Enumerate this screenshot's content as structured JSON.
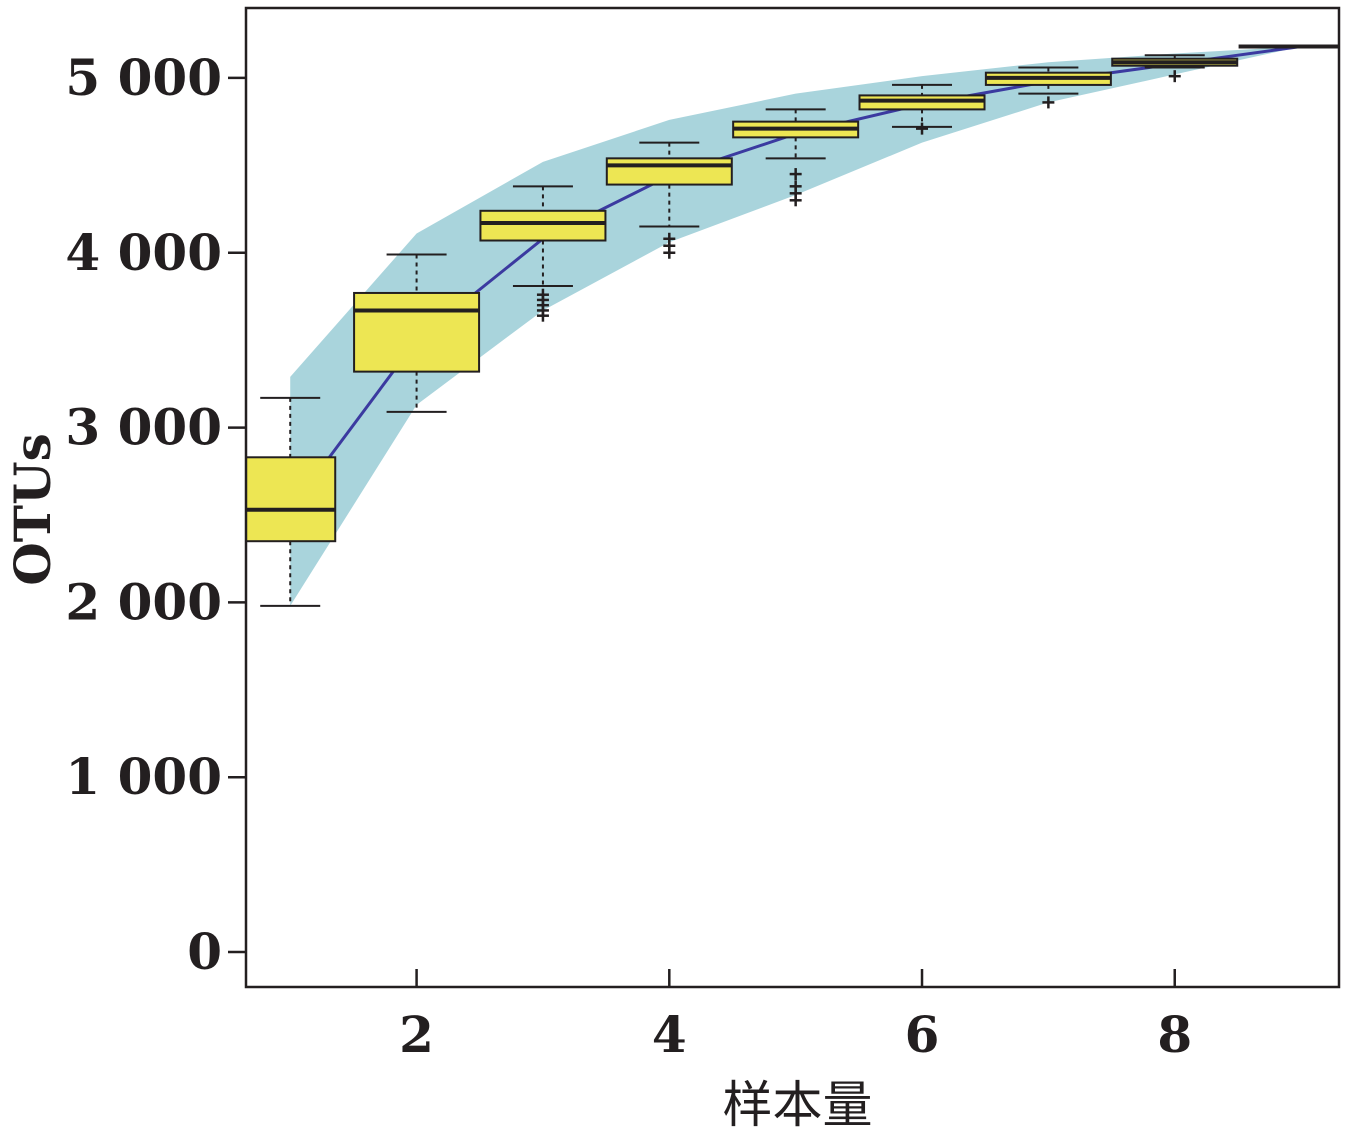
{
  "chart_data": {
    "type": "boxplot",
    "title": "",
    "xlabel": "样本量",
    "ylabel": "OTUs",
    "xlim": [
      0.65,
      9.3
    ],
    "ylim": [
      -200,
      5400
    ],
    "x_ticks": [
      2,
      4,
      6,
      8
    ],
    "x_tick_labels": [
      "2",
      "4",
      "6",
      "8"
    ],
    "y_ticks": [
      0,
      1000,
      2000,
      3000,
      4000,
      5000
    ],
    "y_tick_labels": [
      "0",
      "1 000",
      "2 000",
      "3 000",
      "4 000",
      "5 000"
    ],
    "grid": false,
    "colors": {
      "box_fill": "#ede653",
      "band_fill": "#a9d4dc",
      "line": "#3b3aa0",
      "ink": "#231f20"
    },
    "boxes": [
      {
        "x": 1,
        "whisker_low": 1980,
        "q1": 2350,
        "median": 2530,
        "q3": 2830,
        "whisker_high": 3170,
        "outliers": []
      },
      {
        "x": 2,
        "whisker_low": 3090,
        "q1": 3320,
        "median": 3670,
        "q3": 3770,
        "whisker_high": 3990,
        "outliers": []
      },
      {
        "x": 3,
        "whisker_low": 3810,
        "q1": 4070,
        "median": 4170,
        "q3": 4240,
        "whisker_high": 4380,
        "outliers": [
          3760,
          3730,
          3700,
          3670,
          3640
        ]
      },
      {
        "x": 4,
        "whisker_low": 4150,
        "q1": 4390,
        "median": 4500,
        "q3": 4540,
        "whisker_high": 4630,
        "outliers": [
          4080,
          4040,
          4000
        ]
      },
      {
        "x": 5,
        "whisker_low": 4540,
        "q1": 4660,
        "median": 4710,
        "q3": 4750,
        "whisker_high": 4820,
        "outliers": [
          4450,
          4380,
          4340,
          4300
        ]
      },
      {
        "x": 6,
        "whisker_low": 4720,
        "q1": 4820,
        "median": 4870,
        "q3": 4900,
        "whisker_high": 4960,
        "outliers": [
          4710
        ]
      },
      {
        "x": 7,
        "whisker_low": 4910,
        "q1": 4960,
        "median": 5000,
        "q3": 5030,
        "whisker_high": 5060,
        "outliers": [
          4860
        ]
      },
      {
        "x": 8,
        "whisker_low": 5060,
        "q1": 5070,
        "median": 5090,
        "q3": 5110,
        "whisker_high": 5130,
        "outliers": [
          5010
        ]
      },
      {
        "x": 9,
        "whisker_low": 5180,
        "q1": 5180,
        "median": 5180,
        "q3": 5180,
        "whisker_high": 5180,
        "outliers": []
      }
    ],
    "mean_line": {
      "x": [
        1,
        2,
        3,
        4,
        5,
        6,
        7,
        8,
        9
      ],
      "y": [
        2530,
        3500,
        4080,
        4440,
        4680,
        4850,
        4980,
        5080,
        5180
      ]
    },
    "band": {
      "x": [
        1,
        2,
        3,
        4,
        5,
        6,
        7,
        8,
        9
      ],
      "upper": [
        3290,
        4110,
        4520,
        4760,
        4910,
        5010,
        5090,
        5140,
        5180
      ],
      "lower": [
        1980,
        3130,
        3670,
        4060,
        4330,
        4630,
        4860,
        5020,
        5180
      ]
    }
  }
}
